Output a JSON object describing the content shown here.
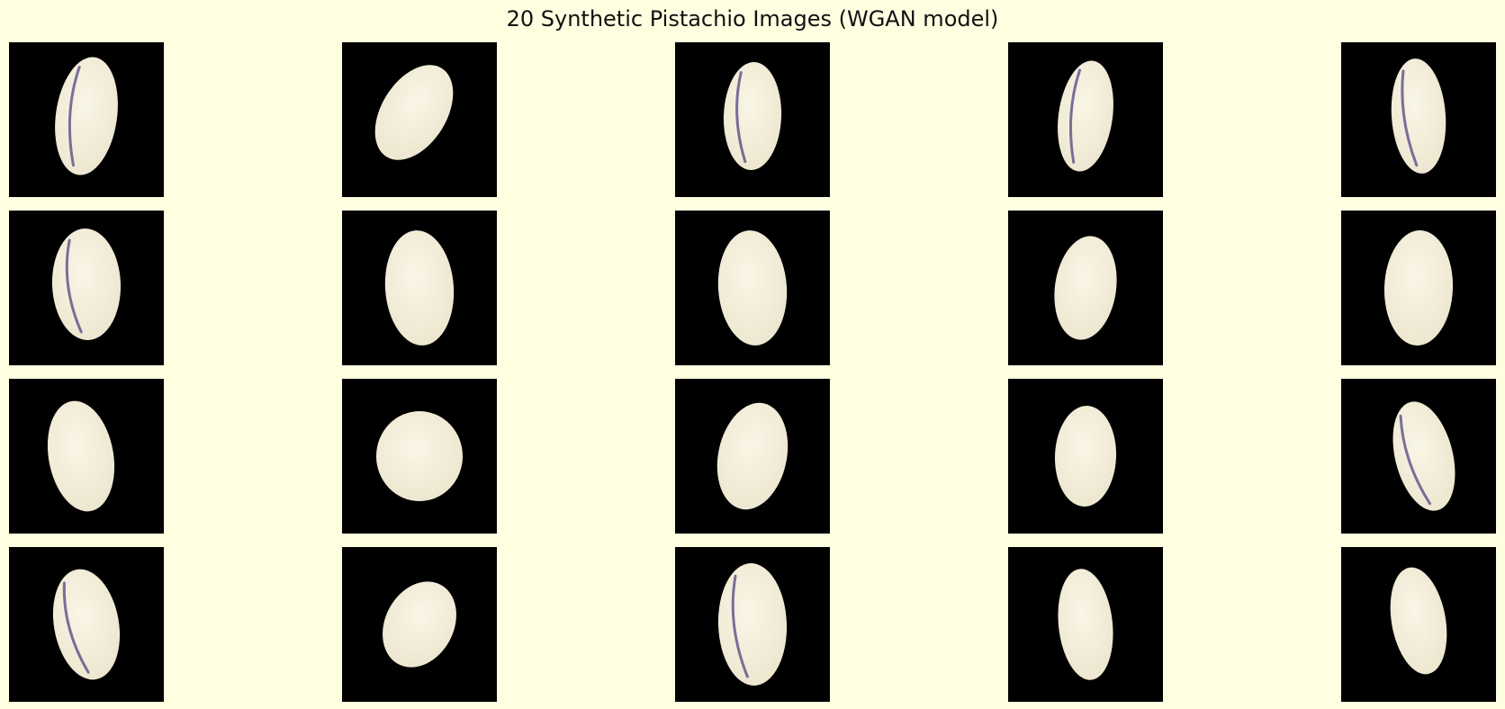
{
  "title": "20 Synthetic Pistachio Images (WGAN model)",
  "colors": {
    "background": "#fefee0",
    "tile_background": "#000000",
    "nut_fill": "#ece6cf",
    "nut_highlight": "#faf6e6",
    "crack": "#5a4e86"
  },
  "images": [
    {
      "description": "pistachio-image-1"
    },
    {
      "description": "pistachio-image-2"
    },
    {
      "description": "pistachio-image-3"
    },
    {
      "description": "pistachio-image-4"
    },
    {
      "description": "pistachio-image-5"
    },
    {
      "description": "pistachio-image-6"
    },
    {
      "description": "pistachio-image-7"
    },
    {
      "description": "pistachio-image-8"
    },
    {
      "description": "pistachio-image-9"
    },
    {
      "description": "pistachio-image-10"
    },
    {
      "description": "pistachio-image-11"
    },
    {
      "description": "pistachio-image-12"
    },
    {
      "description": "pistachio-image-13"
    },
    {
      "description": "pistachio-image-14"
    },
    {
      "description": "pistachio-image-15"
    },
    {
      "description": "pistachio-image-16"
    },
    {
      "description": "pistachio-image-17"
    },
    {
      "description": "pistachio-image-18"
    },
    {
      "description": "pistachio-image-19"
    },
    {
      "description": "pistachio-image-20"
    }
  ]
}
